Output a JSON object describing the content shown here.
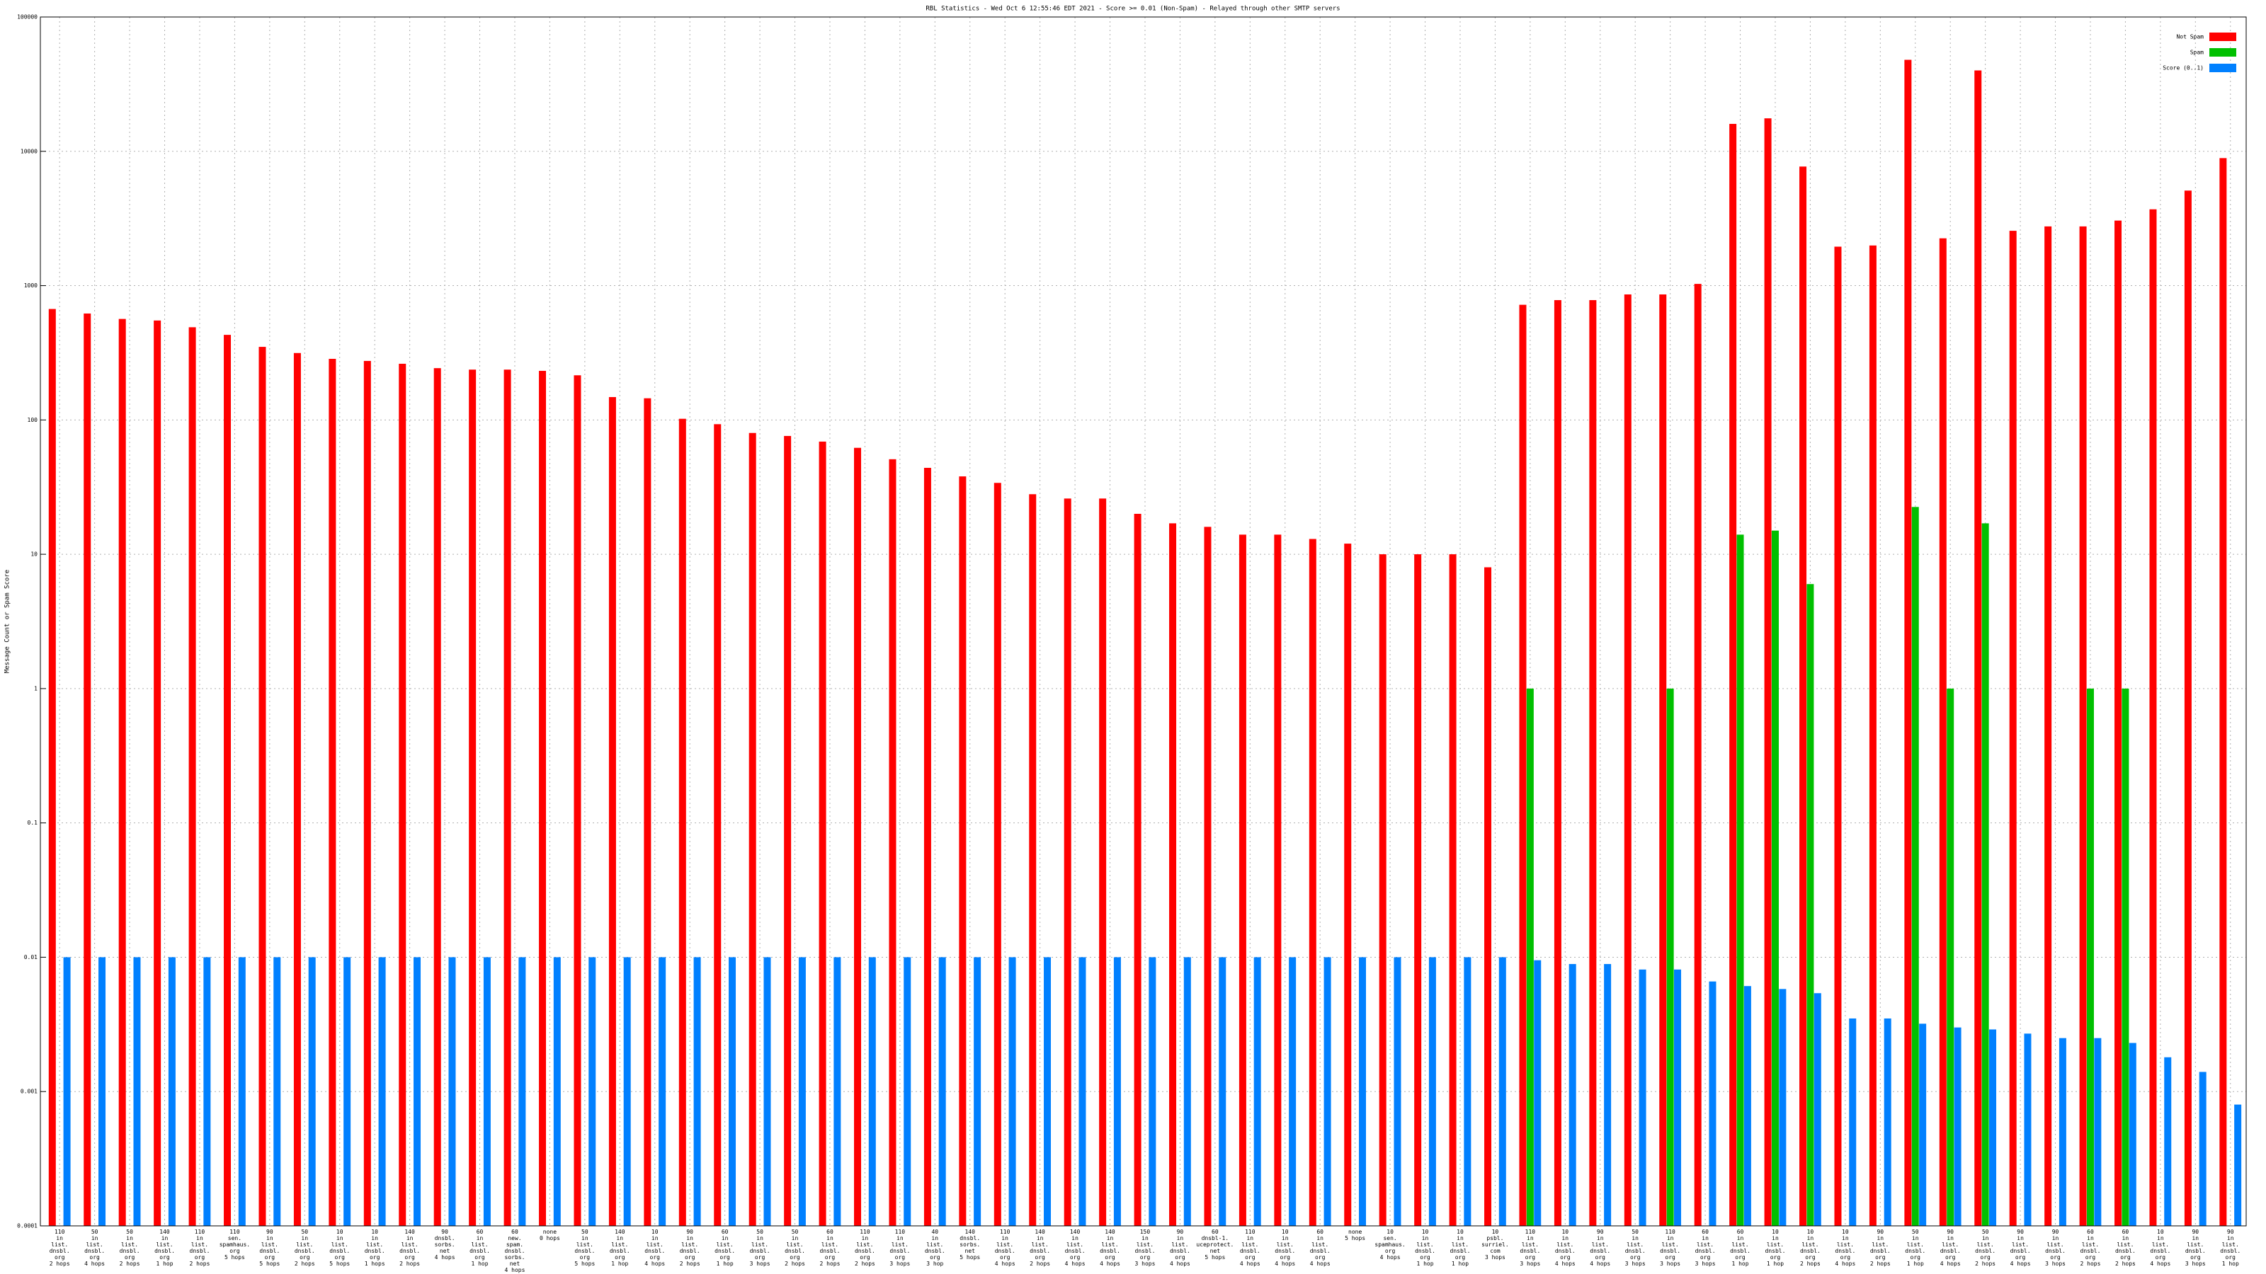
{
  "chart_data": {
    "type": "bar",
    "title": "RBL Statistics - Wed Oct 6 12:55:46 EDT 2021 - Score >= 0.01 (Non-Spam) - Relayed through other SMTP servers",
    "y_label": "Message Count or Spam Score",
    "log_scale": true,
    "grid": true,
    "legend": "top-right",
    "ylim": [
      0.0001,
      100000
    ],
    "yticks": [
      0.0001,
      0.001,
      0.01,
      0.1,
      1,
      10,
      100,
      1000,
      10000,
      100000
    ],
    "categories": [
      "110\nin\nlist.\ndnsbl.\norg\n2 hops",
      "50\nin\nlist.\ndnsbl.\norg\n4 hops",
      "50\nin\nlist.\ndnsbl.\norg\n2 hops",
      "140\nin\nlist.\ndnsbl.\norg\n1 hop",
      "110\nin\nlist.\ndnsbl.\norg\n2 hops",
      "110\nsen.\nspamhaus.\norg\n5 hops",
      "90\nin\nlist.\ndnsbl.\norg\n5 hops",
      "50\nin\nlist.\ndnsbl.\norg\n2 hops",
      "10\nin\nlist.\ndnsbl.\norg\n5 hops",
      "10\nin\nlist.\ndnsbl.\norg\n1 hops",
      "140\nin\nlist.\ndnsbl.\norg\n2 hops",
      "90\ndnsbl.\nsorbs.\nnet\n4 hops",
      "60\nin\nlist.\ndnsbl.\norg\n1 hop",
      "60\nnew.\nspam.\ndnsbl.\nsorbs.\nnet\n4 hops",
      "none\n0 hops",
      "50\nin\nlist.\ndnsbl.\norg\n5 hops",
      "140\nin\nlist.\ndnsbl.\norg\n1 hop",
      "10\nin\nlist.\ndnsbl.\norg\n4 hops",
      "90\nin\nlist.\ndnsbl.\norg\n2 hops",
      "60\nin\nlist.\ndnsbl.\norg\n1 hop",
      "50\nin\nlist.\ndnsbl.\norg\n3 hops",
      "50\nin\nlist.\ndnsbl.\norg\n2 hops",
      "60\nin\nlist.\ndnsbl.\norg\n2 hops",
      "110\nin\nlist.\ndnsbl.\norg\n2 hops",
      "110\nin\nlist.\ndnsbl.\norg\n3 hops",
      "40\nin\nlist.\ndnsbl.\norg\n3 hop",
      "140\ndnsbl.\nsorbs.\nnet\n5 hops",
      "110\nin\nlist.\ndnsbl.\norg\n4 hops",
      "140\nin\nlist.\ndnsbl.\norg\n2 hops",
      "140\nin\nlist.\ndnsbl.\norg\n4 hops",
      "140\nin\nlist.\ndnsbl.\norg\n4 hops",
      "150\nin\nlist.\ndnsbl.\norg\n3 hops",
      "90\nin\nlist.\ndnsbl.\norg\n4 hops",
      "60\ndnsbl-1.\nuceprotect.\nnet\n5 hops",
      "110\nin\nlist.\ndnsbl.\norg\n4 hops",
      "10\nin\nlist.\ndnsbl.\norg\n4 hops",
      "60\nin\nlist.\ndnsbl.\norg\n4 hops",
      "none\n5 hops",
      "10\nsen.\nspamhaus.\norg\n4 hops",
      "10\nin\nlist.\ndnsbl.\norg\n1 hop",
      "10\nin\nlist.\ndnsbl.\norg\n1 hop",
      "10\npsbl.\nsurriel.\ncom\n3 hops",
      "110\nin\nlist.\ndnsbl.\norg\n3 hops",
      "10\nin\nlist.\ndnsbl.\norg\n4 hops",
      "90\nin\nlist.\ndnsbl.\norg\n4 hops",
      "50\nin\nlist.\ndnsbl.\norg\n3 hops",
      "110\nin\nlist.\ndnsbl.\norg\n3 hops",
      "60\nin\nlist.\ndnsbl.\norg\n3 hops",
      "60\nin\nlist.\ndnsbl.\norg\n1 hop",
      "10\nin\nlist.\ndnsbl.\norg\n1 hop",
      "10\nin\nlist.\ndnsbl.\norg\n2 hops",
      "10\nin\nlist.\ndnsbl.\norg\n4 hops",
      "90\nin\nlist.\ndnsbl.\norg\n2 hops",
      "50\nin\nlist.\ndnsbl.\norg\n1 hop",
      "90\nin\nlist.\ndnsbl.\norg\n4 hops",
      "50\nin\nlist.\ndnsbl.\norg\n2 hops",
      "90\nin\nlist.\ndnsbl.\norg\n4 hops",
      "90\nin\nlist.\ndnsbl.\norg\n3 hops",
      "60\nin\nlist.\ndnsbl.\norg\n2 hops",
      "60\nin\nlist.\ndnsbl.\norg\n2 hops",
      "10\nin\nlist.\ndnsbl.\norg\n4 hops",
      "90\nin\nlist.\ndnsbl.\norg\n3 hops",
      "90\nin\nlist.\ndnsbl.\norg\n1 hop"
    ],
    "series": [
      {
        "name": "Not Spam",
        "color": "#ff0000",
        "values": [
          670,
          620,
          565,
          550,
          490,
          430,
          350,
          315,
          285,
          275,
          262,
          243,
          237,
          237,
          232,
          215,
          148,
          145,
          102,
          93,
          80,
          76,
          69,
          62,
          51,
          44,
          38,
          34,
          28,
          26,
          26,
          20,
          17,
          16,
          14,
          14,
          13,
          12,
          10,
          10,
          10,
          8,
          720,
          780,
          780,
          860,
          860,
          1030,
          16000,
          17600,
          7700,
          1950,
          1990,
          48000,
          2250,
          40000,
          2560,
          2760,
          2760,
          3050,
          3700,
          5100,
          8900
        ]
      },
      {
        "name": "Spam",
        "color": "#00c000",
        "values": [
          null,
          null,
          null,
          null,
          null,
          null,
          null,
          null,
          null,
          null,
          null,
          null,
          null,
          null,
          null,
          null,
          null,
          null,
          null,
          null,
          null,
          null,
          null,
          null,
          null,
          null,
          null,
          null,
          null,
          null,
          null,
          null,
          null,
          null,
          null,
          null,
          null,
          null,
          null,
          null,
          null,
          null,
          1,
          null,
          null,
          null,
          1,
          null,
          14,
          15,
          6,
          null,
          null,
          22.5,
          1,
          17,
          null,
          null,
          1,
          1,
          null,
          null,
          null
        ]
      },
      {
        "name": "Score (0..1)",
        "color": "#0080ff",
        "values": [
          0.01,
          0.01,
          0.01,
          0.01,
          0.01,
          0.01,
          0.01,
          0.01,
          0.01,
          0.01,
          0.01,
          0.01,
          0.01,
          0.01,
          0.01,
          0.01,
          0.01,
          0.01,
          0.01,
          0.01,
          0.01,
          0.01,
          0.01,
          0.01,
          0.01,
          0.01,
          0.01,
          0.01,
          0.01,
          0.01,
          0.01,
          0.01,
          0.01,
          0.01,
          0.01,
          0.01,
          0.01,
          0.01,
          0.01,
          0.01,
          0.01,
          0.01,
          0.0095,
          0.0089,
          0.0089,
          0.0081,
          0.0081,
          0.0066,
          0.0061,
          0.0058,
          0.0054,
          0.0035,
          0.0035,
          0.0032,
          0.003,
          0.0029,
          0.0027,
          0.0025,
          0.0025,
          0.0023,
          0.0018,
          0.0014,
          0.0008
        ]
      }
    ]
  }
}
